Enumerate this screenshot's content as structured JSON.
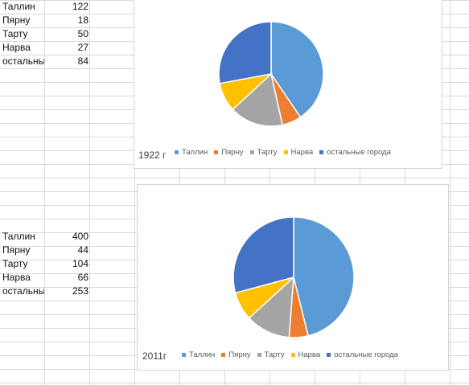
{
  "table1": {
    "rows": [
      {
        "label": "Таллин",
        "value": "122"
      },
      {
        "label": "Пярну",
        "value": "18"
      },
      {
        "label": "Тарту",
        "value": "50"
      },
      {
        "label": "Нарва",
        "value": "27"
      },
      {
        "label": "остальные",
        "value": "84"
      }
    ]
  },
  "table2": {
    "rows": [
      {
        "label": "Таллин",
        "value": "400"
      },
      {
        "label": "Пярну",
        "value": "44"
      },
      {
        "label": "Тарту",
        "value": "104"
      },
      {
        "label": "Нарва",
        "value": "66"
      },
      {
        "label": "остальные",
        "value": "253"
      }
    ]
  },
  "colors": {
    "Таллин": "#5b9bd5",
    "Пярну": "#ed7d31",
    "Тарту": "#a5a5a5",
    "Нарва": "#ffc000",
    "остальные города": "#4472c4"
  },
  "chart_data": [
    {
      "type": "pie",
      "title": "1922 г",
      "categories": [
        "Таллин",
        "Пярну",
        "Тарту",
        "Нарва",
        "остальные города"
      ],
      "values": [
        122,
        18,
        50,
        27,
        84
      ],
      "legend": "bottom"
    },
    {
      "type": "pie",
      "title": "2011г",
      "categories": [
        "Таллин",
        "Пярну",
        "Тарту",
        "Нарва",
        "остальные города"
      ],
      "values": [
        400,
        44,
        104,
        66,
        253
      ],
      "legend": "bottom"
    }
  ]
}
